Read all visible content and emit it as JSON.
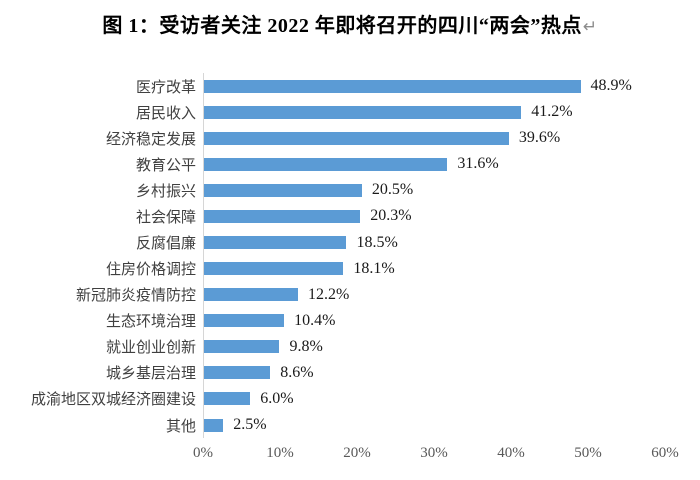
{
  "title": {
    "text": "图 1：受访者关注 2022 年即将召开的四川“两会”热点",
    "return_mark": "↵"
  },
  "colors": {
    "bar": "#5b9bd5",
    "axis_line": "#d6d6d6",
    "category_label": "#404040",
    "tick_label": "#595959",
    "value_label": "#1a1a1a"
  },
  "chart_data": {
    "type": "bar",
    "orientation": "horizontal",
    "title": "图 1：受访者关注 2022 年即将召开的四川“两会”热点",
    "categories": [
      "医疗改革",
      "居民收入",
      "经济稳定发展",
      "教育公平",
      "乡村振兴",
      "社会保障",
      "反腐倡廉",
      "住房价格调控",
      "新冠肺炎疫情防控",
      "生态环境治理",
      "就业创业创新",
      "城乡基层治理",
      "成渝地区双城经济圈建设",
      "其他"
    ],
    "values": [
      48.9,
      41.2,
      39.6,
      31.6,
      20.5,
      20.3,
      18.5,
      18.1,
      12.2,
      10.4,
      9.8,
      8.6,
      6.0,
      2.5
    ],
    "value_labels": [
      "48.9%",
      "41.2%",
      "39.6%",
      "31.6%",
      "20.5%",
      "20.3%",
      "18.5%",
      "18.1%",
      "12.2%",
      "10.4%",
      "9.8%",
      "8.6%",
      "6.0%",
      "2.5%"
    ],
    "xlim": [
      0,
      60
    ],
    "x_ticks": [
      "0%",
      "10%",
      "20%",
      "30%",
      "40%",
      "50%",
      "60%"
    ],
    "grid": false,
    "legend": false,
    "bar_color": "#5b9bd5"
  }
}
